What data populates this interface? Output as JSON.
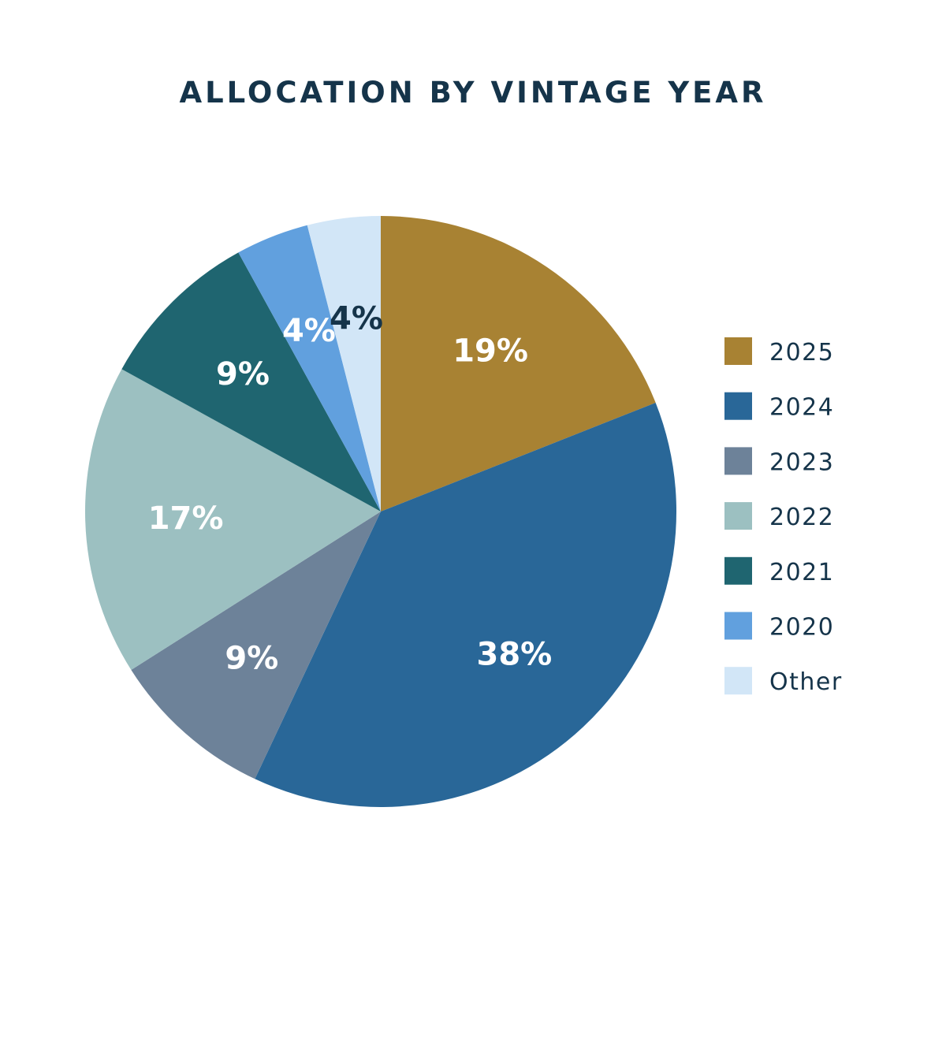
{
  "chart_data": {
    "type": "pie",
    "title": "ALLOCATION BY VINTAGE YEAR",
    "start_angle_deg": 0,
    "direction": "clockwise",
    "legend_position": "right",
    "slices": [
      {
        "category": "2025",
        "value": 19,
        "label": "19%",
        "color": "#a88233",
        "label_color": "#ffffff"
      },
      {
        "category": "2024",
        "value": 38,
        "label": "38%",
        "color": "#296798",
        "label_color": "#ffffff"
      },
      {
        "category": "2023",
        "value": 9,
        "label": "9%",
        "color": "#6d8299",
        "label_color": "#ffffff"
      },
      {
        "category": "2022",
        "value": 17,
        "label": "17%",
        "color": "#9cc0c1",
        "label_color": "#ffffff"
      },
      {
        "category": "2021",
        "value": 9,
        "label": "9%",
        "color": "#1f6570",
        "label_color": "#ffffff"
      },
      {
        "category": "2020",
        "value": 4,
        "label": "4%",
        "color": "#61a0de",
        "label_color": "#ffffff"
      },
      {
        "category": "Other",
        "value": 4,
        "label": "4%",
        "color": "#d2e6f7",
        "label_color": "#15344a"
      }
    ]
  }
}
